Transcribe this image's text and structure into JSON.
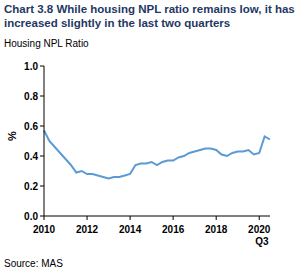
{
  "chart_data": {
    "type": "line",
    "title": "Chart 3.8 While housing NPL ratio remains low, it has increased slightly in the last two quarters",
    "subtitle": "Housing NPL Ratio",
    "y_label": "%",
    "source": "Source: MAS",
    "annotation": "Q3",
    "categories": [
      "2010",
      null,
      null,
      null,
      null,
      null,
      null,
      null,
      "2012",
      null,
      null,
      null,
      null,
      null,
      null,
      null,
      "2014",
      null,
      null,
      null,
      null,
      null,
      null,
      null,
      "2016",
      null,
      null,
      null,
      null,
      null,
      null,
      null,
      "2018",
      null,
      null,
      null,
      null,
      null,
      null,
      null,
      "2020",
      null,
      null
    ],
    "values": [
      0.57,
      0.5,
      0.46,
      0.42,
      0.38,
      0.34,
      0.29,
      0.3,
      0.28,
      0.28,
      0.27,
      0.26,
      0.25,
      0.26,
      0.26,
      0.27,
      0.28,
      0.34,
      0.35,
      0.35,
      0.36,
      0.34,
      0.36,
      0.37,
      0.37,
      0.39,
      0.4,
      0.42,
      0.43,
      0.44,
      0.45,
      0.45,
      0.44,
      0.41,
      0.4,
      0.42,
      0.43,
      0.43,
      0.44,
      0.41,
      0.42,
      0.53,
      0.51
    ],
    "color": "#5b9bd5",
    "ylim": [
      0,
      1
    ],
    "yticks": [
      {
        "value": 0,
        "label": "0.0"
      },
      {
        "value": 0.2,
        "label": "0.2"
      },
      {
        "value": 0.4,
        "label": "0.4"
      },
      {
        "value": 0.6,
        "label": "0.6"
      },
      {
        "value": 0.8,
        "label": "0.8"
      },
      {
        "value": 1,
        "label": "1.0"
      }
    ],
    "grid": false
  }
}
